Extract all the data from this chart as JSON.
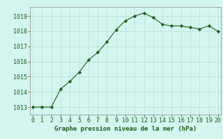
{
  "x": [
    0,
    1,
    2,
    3,
    4,
    5,
    6,
    7,
    8,
    9,
    10,
    11,
    12,
    13,
    14,
    15,
    16,
    17,
    18,
    19,
    20
  ],
  "y": [
    1013.0,
    1013.0,
    1013.0,
    1014.2,
    1014.7,
    1015.3,
    1016.1,
    1016.6,
    1017.3,
    1018.1,
    1018.7,
    1019.0,
    1019.2,
    1018.9,
    1018.45,
    1018.35,
    1018.35,
    1018.25,
    1018.15,
    1018.35,
    1018.0
  ],
  "line_color": "#1a5c1a",
  "marker": "D",
  "marker_size": 2.2,
  "bg_color": "#d5f5f0",
  "grid_color": "#b8ddd8",
  "xlabel": "Graphe pression niveau de la mer (hPa)",
  "xlabel_fontsize": 6.5,
  "tick_fontsize": 6,
  "ylim": [
    1012.5,
    1019.6
  ],
  "xlim": [
    -0.3,
    20.3
  ],
  "yticks": [
    1013,
    1014,
    1015,
    1016,
    1017,
    1018,
    1019
  ],
  "xticks": [
    0,
    1,
    2,
    3,
    4,
    5,
    6,
    7,
    8,
    9,
    10,
    11,
    12,
    13,
    14,
    15,
    16,
    17,
    18,
    19,
    20
  ]
}
